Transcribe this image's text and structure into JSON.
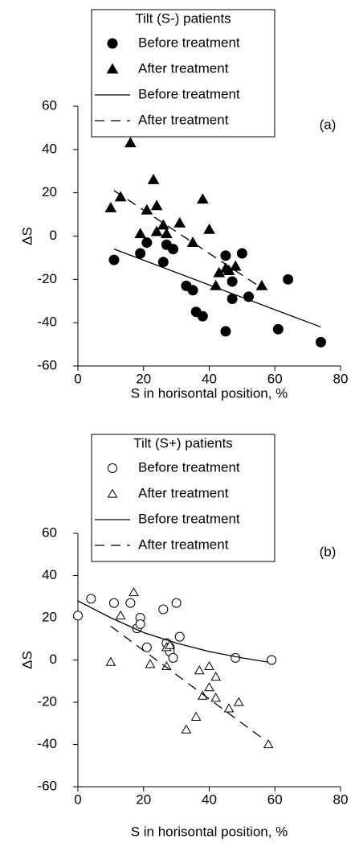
{
  "chart_data": [
    {
      "type": "scatter",
      "title": "Tilt (S-) patients",
      "panel_label": "(a)",
      "xlabel": "S in horisontal position, %",
      "ylabel": "ΔS",
      "xlim": [
        0,
        80
      ],
      "ylim": [
        -60,
        60
      ],
      "xticks": [
        0,
        20,
        40,
        60,
        80
      ],
      "yticks": [
        -60,
        -40,
        -20,
        0,
        20,
        40,
        60
      ],
      "series": [
        {
          "name": "Before treatment",
          "marker": "circle",
          "filled": true,
          "color": "#000000",
          "x": [
            11,
            19,
            21,
            26,
            27,
            29,
            33,
            35,
            36,
            38,
            45,
            45,
            47,
            47,
            50,
            52,
            61,
            64,
            74
          ],
          "values": [
            -11,
            -8,
            -3,
            -12,
            -4,
            -6,
            -23,
            -25,
            -35,
            -37,
            -9,
            -44,
            -29,
            -21,
            -8,
            -28,
            -43,
            -20,
            -49
          ]
        },
        {
          "name": "After treatment",
          "marker": "triangle",
          "filled": true,
          "color": "#000000",
          "x": [
            10,
            13,
            16,
            19,
            21,
            23,
            24,
            24,
            26,
            27,
            31,
            35,
            38,
            40,
            42,
            43,
            45,
            46,
            48,
            56
          ],
          "values": [
            13,
            18,
            43,
            1,
            12,
            26,
            14,
            2,
            5,
            1,
            6,
            -3,
            17,
            3,
            -23,
            -17,
            -15,
            -16,
            -14,
            -23
          ]
        },
        {
          "name": "Before treatment",
          "line": "solid",
          "color": "#000000",
          "x": [
            11,
            74
          ],
          "values": [
            -6,
            -42
          ]
        },
        {
          "name": "After treatment",
          "line": "dashed",
          "color": "#000000",
          "x": [
            11,
            56
          ],
          "values": [
            21,
            -24
          ]
        }
      ]
    },
    {
      "type": "scatter",
      "title": "Tilt (S+) patients",
      "panel_label": "(b)",
      "xlabel": "S in horisontal position, %",
      "ylabel": "ΔS",
      "xlim": [
        0,
        80
      ],
      "ylim": [
        -60,
        60
      ],
      "xticks": [
        0,
        20,
        40,
        60,
        80
      ],
      "yticks": [
        -60,
        -40,
        -20,
        0,
        20,
        40,
        60
      ],
      "series": [
        {
          "name": "Before treatment",
          "marker": "circle",
          "filled": false,
          "color": "#000000",
          "x": [
            0,
            4,
            11,
            16,
            18,
            19,
            19,
            21,
            26,
            27,
            28,
            28,
            29,
            30,
            31,
            48,
            59
          ],
          "values": [
            21,
            29,
            27,
            27,
            15,
            20,
            17,
            6,
            24,
            8,
            6,
            4,
            1,
            27,
            11,
            1,
            0
          ]
        },
        {
          "name": "After treatment",
          "marker": "triangle",
          "filled": false,
          "color": "#000000",
          "x": [
            10,
            13,
            17,
            22,
            27,
            27,
            28,
            33,
            36,
            37,
            38,
            40,
            40,
            42,
            42,
            46,
            49,
            58
          ],
          "values": [
            -1,
            21,
            32,
            -2,
            6,
            -3,
            7,
            -33,
            -27,
            -5,
            -17,
            -3,
            -13,
            -18,
            -8,
            -23,
            -20,
            -40
          ]
        },
        {
          "name": "Before treatment",
          "line": "solid",
          "color": "#000000",
          "x": [
            0,
            10,
            20,
            30,
            40,
            50,
            58
          ],
          "values": [
            28,
            20,
            13,
            8,
            4,
            1,
            -1
          ]
        },
        {
          "name": "After treatment",
          "line": "dashed",
          "color": "#000000",
          "x": [
            10,
            57
          ],
          "values": [
            16,
            -38
          ]
        }
      ]
    }
  ]
}
